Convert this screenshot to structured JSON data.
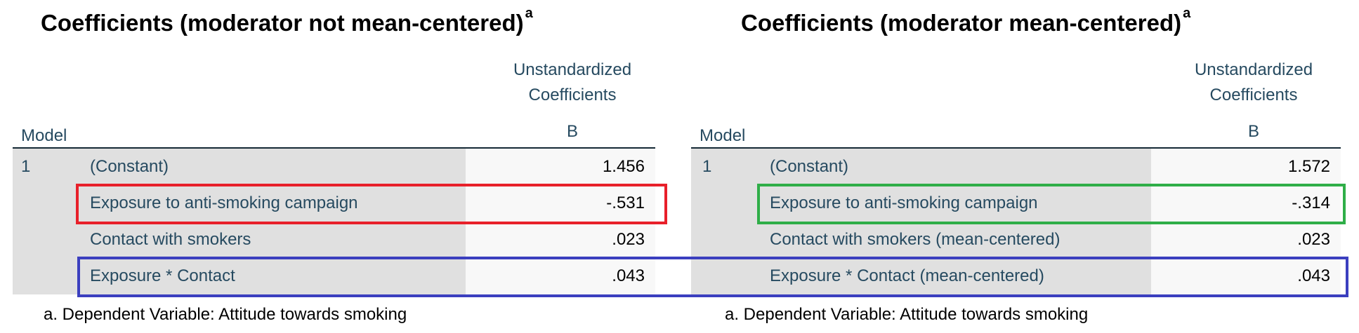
{
  "left_table": {
    "title": "Coefficients (moderator not mean-centered)",
    "title_sup": "a",
    "col_header_line1": "Unstandardized",
    "col_header_line2": "Coefficients",
    "col_header_b": "B",
    "model_header": "Model",
    "model_number": "1",
    "rows": [
      {
        "label": "(Constant)",
        "value": "1.456"
      },
      {
        "label": "Exposure to anti-smoking campaign",
        "value": "-.531"
      },
      {
        "label": "Contact with smokers",
        "value": ".023"
      },
      {
        "label": "Exposure * Contact",
        "value": ".043"
      }
    ],
    "footnote": "a. Dependent Variable: Attitude towards smoking"
  },
  "right_table": {
    "title": "Coefficients (moderator mean-centered)",
    "title_sup": "a",
    "col_header_line1": "Unstandardized",
    "col_header_line2": "Coefficients",
    "col_header_b": "B",
    "model_header": "Model",
    "model_number": "1",
    "rows": [
      {
        "label": "(Constant)",
        "value": "1.572"
      },
      {
        "label": "Exposure to anti-smoking campaign",
        "value": "-.314"
      },
      {
        "label": "Contact with smokers (mean-centered)",
        "value": ".023"
      },
      {
        "label": "Exposure * Contact (mean-centered)",
        "value": ".043"
      }
    ],
    "footnote": "a. Dependent Variable: Attitude towards smoking"
  },
  "highlights": {
    "red": "#e8202a",
    "green": "#2fae48",
    "blue": "#3b3fbf"
  }
}
